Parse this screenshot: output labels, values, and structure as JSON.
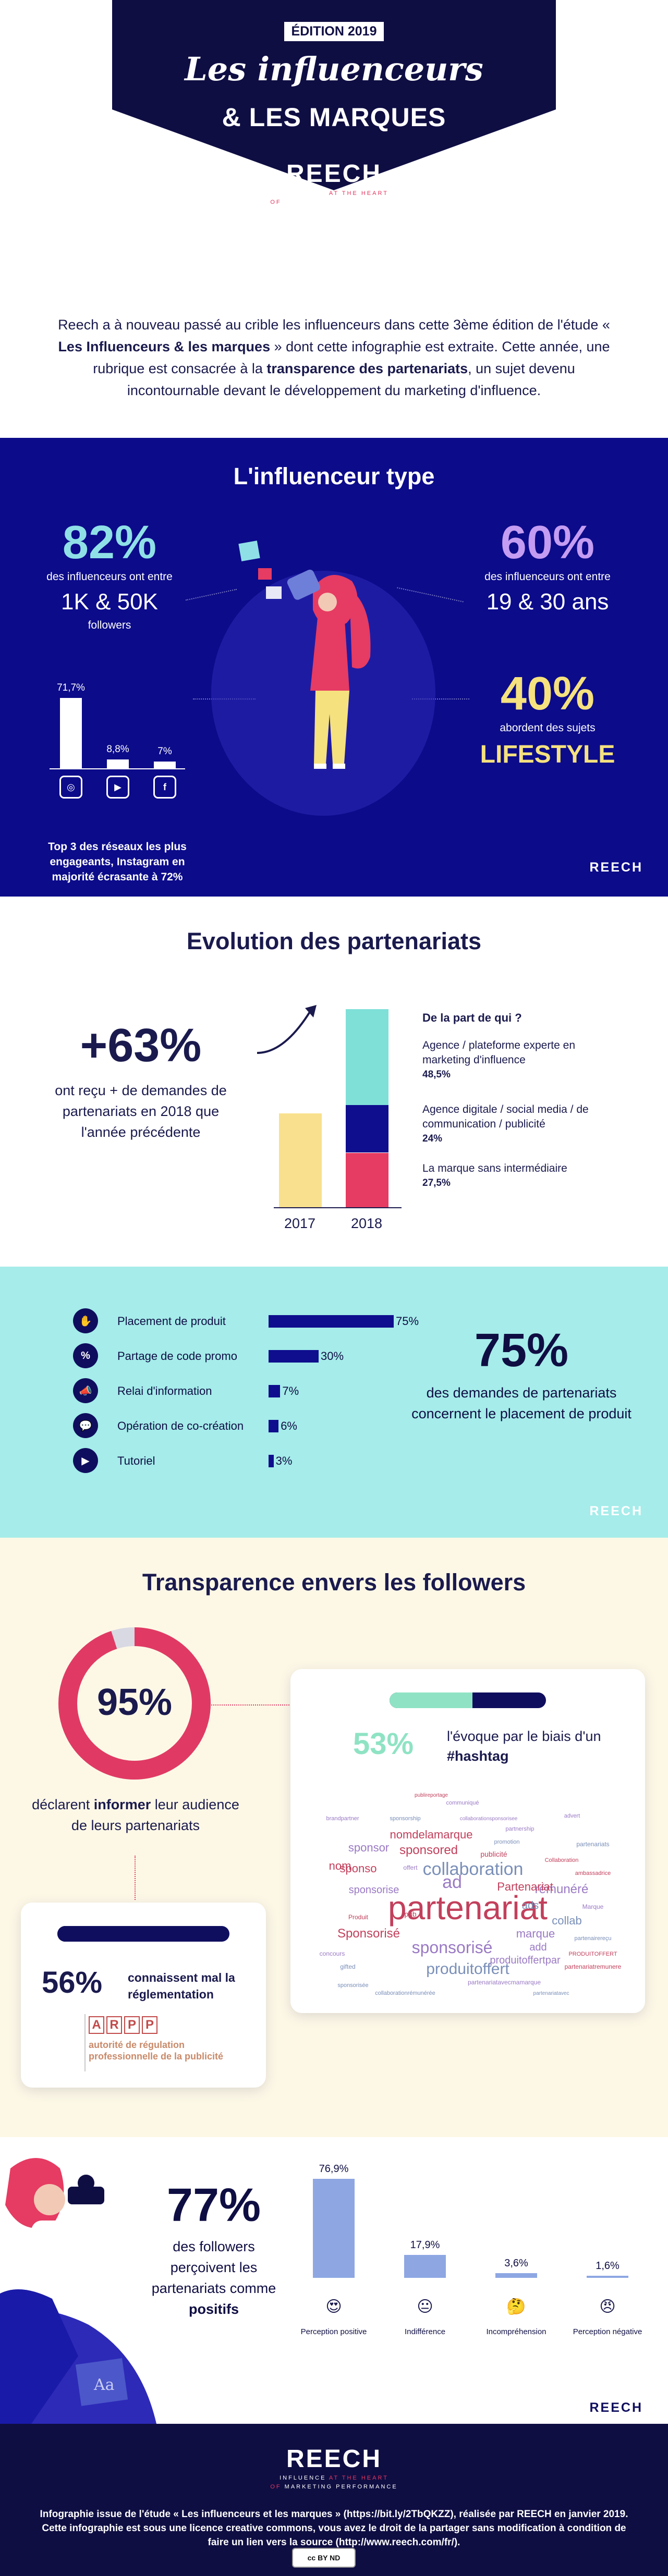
{
  "header": {
    "edition": "ÉDITION 2019",
    "title_line1": "Les influenceurs",
    "title_line2": "& LES MARQUES",
    "logo": "REECH",
    "tagline_1a": "INFLUENCE",
    "tagline_1b": "AT THE HEART",
    "tagline_2a": "OF",
    "tagline_2b": "MARKETING PERFORMANCE",
    "colors": {
      "navy": "#0f0e43",
      "accent": "#e4375f"
    }
  },
  "intro": {
    "t1": "Reech a à nouveau passé au crible les influenceurs dans cette 3ème édition de l'étude « ",
    "t2": "Les Influenceurs & les marques",
    "t3": " » dont cette infographie est extraite. Cette année, une rubrique est consacrée à la ",
    "t4": "transparence des partenariats",
    "t5": ", un sujet devenu incontournable devant le développement du marketing d'influence."
  },
  "influencer_type": {
    "title": "L'influenceur type",
    "followers": {
      "pct": "82%",
      "line1": "des influenceurs ont entre",
      "range": "1K & 50K",
      "line3": "followers"
    },
    "age": {
      "pct": "60%",
      "line1": "des influenceurs ont entre",
      "range": "19 & 30 ans"
    },
    "topics": {
      "pct": "40%",
      "line1": "abordent des sujets",
      "topic": "LIFESTYLE"
    },
    "social": {
      "items": [
        {
          "network": "Instagram",
          "icon": "instagram-icon",
          "value": 71.7,
          "label": "71,7%"
        },
        {
          "network": "YouTube",
          "icon": "youtube-icon",
          "value": 8.8,
          "label": "8,8%"
        },
        {
          "network": "Facebook",
          "icon": "facebook-icon",
          "value": 7,
          "label": "7%"
        }
      ],
      "caption_1": "Top 3 des réseaux les plus engageants, ",
      "caption_2": "Instagram",
      "caption_3": " en majorité écrasante à ",
      "caption_4": "72%"
    },
    "brand": "REECH",
    "colors": {
      "bg": "#0c0b8a",
      "cyan": "#8fe0e6",
      "purple": "#c49cf2",
      "yellow": "#f5e17e"
    }
  },
  "evolution": {
    "title": "Evolution des partenariats",
    "growth_pct": "+63%",
    "growth_text": "ont reçu + de demandes de partenariats en 2018 que l'année précédente",
    "years": [
      "2017",
      "2018"
    ],
    "who_title": "De la part de qui ?",
    "sources": [
      {
        "name": "Agence / plateforme experte en marketing d'influence",
        "pct": "48,5%",
        "value": 48.5,
        "color": "#7fe0d8"
      },
      {
        "name": "Agence digitale / social media / de communication / publicité",
        "pct": "24%",
        "value": 24,
        "color": "#0f0e8e"
      },
      {
        "name": "La marque sans intermédiaire",
        "pct": "27,5%",
        "value": 27.5,
        "color": "#e63b62"
      }
    ],
    "bar_2017_color": "#f8e08e"
  },
  "placement": {
    "items": [
      {
        "label": "Placement de produit",
        "value": 75,
        "pct": "75%",
        "icon": "hand-icon"
      },
      {
        "label": "Partage de code promo",
        "value": 30,
        "pct": "30%",
        "icon": "percent-icon"
      },
      {
        "label": "Relai d'information",
        "value": 7,
        "pct": "7%",
        "icon": "megaphone-icon"
      },
      {
        "label": "Opération de co-création",
        "value": 6,
        "pct": "6%",
        "icon": "chat-icon"
      },
      {
        "label": "Tutoriel",
        "value": 3,
        "pct": "3%",
        "icon": "video-icon"
      }
    ],
    "big_pct": "75%",
    "big_text": "des demandes de partenariats concernent le placement de produit",
    "brand": "REECH"
  },
  "transparency": {
    "title": "Transparence envers les followers",
    "inform_pct": "95%",
    "inform_value": 95,
    "inform_1": "déclarent ",
    "inform_2": "informer",
    "inform_3": " leur audience de leurs partenariats",
    "hashtag_pct": "53%",
    "hashtag_value": 53,
    "hashtag_1": "l'évoque par le biais d'un ",
    "hashtag_2": "#hashtag",
    "reg_pct": "56%",
    "reg_value": 56,
    "reg_text": "connaissent mal la réglementation",
    "arpp_letters": [
      "A",
      "R",
      "P",
      "P"
    ],
    "arpp_text": "autorité de régulation professionnelle de la publicité",
    "word_cloud": [
      {
        "w": "partenariat",
        "s": 64,
        "c": "#c2405c"
      },
      {
        "w": "collaboration",
        "s": 34,
        "c": "#7a8fb8"
      },
      {
        "w": "sponsorisé",
        "s": 32,
        "c": "#9a7ac4"
      },
      {
        "w": "produitoffert",
        "s": 30,
        "c": "#7a8fb8"
      },
      {
        "w": "sponsored",
        "s": 24,
        "c": "#c2405c"
      },
      {
        "w": "Sponsorisé",
        "s": 24,
        "c": "#c2405c"
      },
      {
        "w": "ad",
        "s": 34,
        "c": "#9a7ac4"
      },
      {
        "w": "rémunéré",
        "s": 24,
        "c": "#9a7ac4"
      },
      {
        "w": "nomdelamarque",
        "s": 22,
        "c": "#c2405c"
      },
      {
        "w": "Partenariat",
        "s": 22,
        "c": "#c2405c"
      },
      {
        "w": "sponsor",
        "s": 22,
        "c": "#9a7ac4"
      },
      {
        "w": "sponso",
        "s": 22,
        "c": "#c2405c"
      },
      {
        "w": "sponsorise",
        "s": 20,
        "c": "#9a7ac4"
      },
      {
        "w": "marque",
        "s": 22,
        "c": "#9a7ac4"
      },
      {
        "w": "nom",
        "s": 22,
        "c": "#c2405c"
      },
      {
        "w": "collab",
        "s": 22,
        "c": "#7a8fb8"
      },
      {
        "w": "produitoffertpar",
        "s": 20,
        "c": "#9a7ac4"
      },
      {
        "w": "ads",
        "s": 20,
        "c": "#7a8fb8"
      },
      {
        "w": "add",
        "s": 20,
        "c": "#9a7ac4"
      },
      {
        "w": "publicité",
        "s": 14,
        "c": "#c2405c"
      },
      {
        "w": "concours",
        "s": 12,
        "c": "#9a7ac4"
      },
      {
        "w": "Produit",
        "s": 12,
        "c": "#c2405c"
      },
      {
        "w": "gifted",
        "s": 12,
        "c": "#7a8fb8"
      },
      {
        "w": "partenariatremunere",
        "s": 12,
        "c": "#c2405c"
      },
      {
        "w": "partenariatavecmamarque",
        "s": 12,
        "c": "#9a7ac4"
      },
      {
        "w": "collaborationrémunérée",
        "s": 11,
        "c": "#7a8fb8"
      },
      {
        "w": "offert",
        "s": 12,
        "c": "#9a7ac4"
      },
      {
        "w": "sponsorship",
        "s": 11,
        "c": "#7a8fb8"
      },
      {
        "w": "partnership",
        "s": 11,
        "c": "#9a7ac4"
      },
      {
        "w": "Collaboration",
        "s": 11,
        "c": "#c2405c"
      },
      {
        "w": "promotion",
        "s": 11,
        "c": "#7a8fb8"
      },
      {
        "w": "communiqué",
        "s": 11,
        "c": "#9a7ac4"
      },
      {
        "w": "ambassadrice",
        "s": 11,
        "c": "#c2405c"
      },
      {
        "w": "partenariats",
        "s": 12,
        "c": "#7a8fb8"
      },
      {
        "w": "pub",
        "s": 14,
        "c": "#c2405c"
      },
      {
        "w": "brandpartner",
        "s": 11,
        "c": "#9a7ac4"
      },
      {
        "w": "partenairereçu",
        "s": 11,
        "c": "#7a8fb8"
      },
      {
        "w": "PRODUITOFFERT",
        "s": 11,
        "c": "#c2405c"
      },
      {
        "w": "advert",
        "s": 11,
        "c": "#9a7ac4"
      },
      {
        "w": "sponsorisée",
        "s": 11,
        "c": "#7a8fb8"
      },
      {
        "w": "collaborationsponsorisee",
        "s": 10,
        "c": "#9a7ac4"
      },
      {
        "w": "publireportage",
        "s": 10,
        "c": "#c2405c"
      },
      {
        "w": "partenariatavec",
        "s": 10,
        "c": "#7a8fb8"
      },
      {
        "w": "Marque",
        "s": 12,
        "c": "#9a7ac4"
      }
    ]
  },
  "positivity": {
    "pct": "77%",
    "text_1": "des followers perçoivent les partenariats comme ",
    "text_2": "positifs",
    "reactions": [
      {
        "label": "Perception positive",
        "value": 76.9,
        "pct": "76,9%",
        "emoji": "😍",
        "icon": "heart-eyes-icon"
      },
      {
        "label": "Indifférence",
        "value": 17.9,
        "pct": "17,9%",
        "emoji": "😐",
        "icon": "neutral-face-icon"
      },
      {
        "label": "Incompréhension",
        "value": 3.6,
        "pct": "3,6%",
        "emoji": "🤔",
        "icon": "thinking-face-icon"
      },
      {
        "label": "Perception négative",
        "value": 1.6,
        "pct": "1,6%",
        "emoji": "😠",
        "icon": "angry-face-icon"
      }
    ],
    "brand": "REECH"
  },
  "footer": {
    "logo": "REECH",
    "tagline_1a": "INFLUENCE",
    "tagline_1b": "AT THE HEART",
    "tagline_2a": "OF",
    "tagline_2b": "MARKETING PERFORMANCE",
    "note": "Infographie issue de l'étude « Les influenceurs et les marques » (https://bit.ly/2TbQKZZ), réalisée par REECH en janvier 2019. Cette infographie est sous une licence creative commons, vous avez le droit de la partager sans modification à condition de faire un lien vers la source (http://www.reech.com/fr/).",
    "license": "cc BY ND"
  }
}
